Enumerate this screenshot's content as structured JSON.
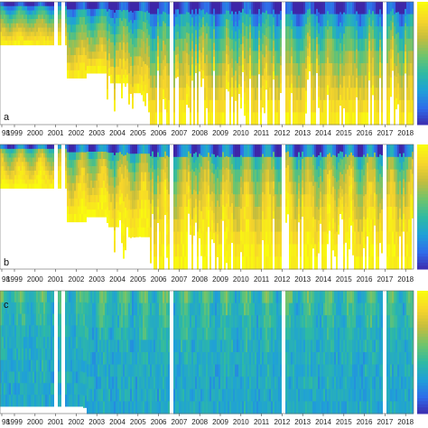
{
  "chart_data": [
    {
      "type": "heatmap",
      "panel_label": "a",
      "x_tick_labels": [
        "98",
        "1999",
        "2000",
        "2001",
        "2002",
        "2003",
        "2004",
        "2005",
        "2006",
        "2007",
        "2008",
        "2009",
        "2010",
        "2011",
        "2012",
        "2013",
        "2014",
        "2015",
        "2016",
        "2017",
        "2018"
      ],
      "colormap": [
        "#3e26a8",
        "#2f6bea",
        "#1fa0d8",
        "#2ebaa3",
        "#6fc46c",
        "#c4bd3e",
        "#f7d52b",
        "#f9fb0e"
      ],
      "coverage_depth_fraction": [
        0.35,
        0.35,
        0.35,
        0.62,
        0.58,
        0.66,
        0.74,
        1.0,
        1.0,
        1.0,
        1.0,
        1.0,
        1.0,
        1.0,
        1.0,
        1.0,
        1.0,
        1.0,
        1.0,
        1.0
      ],
      "data_gaps_year": [
        2000.95,
        2001.35,
        2006.6,
        2012.05,
        2016.95
      ]
    },
    {
      "type": "heatmap",
      "panel_label": "b",
      "x_tick_labels": [
        "98",
        "1999",
        "2000",
        "2001",
        "2002",
        "2003",
        "2004",
        "2005",
        "2006",
        "2007",
        "2008",
        "2009",
        "2010",
        "2011",
        "2012",
        "2013",
        "2014",
        "2015",
        "2016",
        "2017",
        "2018"
      ],
      "colormap": [
        "#3e26a8",
        "#2f6bea",
        "#1fa0d8",
        "#2ebaa3",
        "#6fc46c",
        "#c4bd3e",
        "#f7d52b",
        "#f9fb0e"
      ],
      "coverage_depth_fraction": [
        0.35,
        0.35,
        0.35,
        0.62,
        0.58,
        0.66,
        0.74,
        1.0,
        1.0,
        1.0,
        1.0,
        1.0,
        1.0,
        1.0,
        1.0,
        1.0,
        1.0,
        1.0,
        1.0,
        1.0
      ],
      "data_gaps_year": [
        2000.95,
        2001.35,
        2006.6,
        2012.05,
        2016.95
      ]
    },
    {
      "type": "heatmap",
      "panel_label": "c",
      "x_tick_labels": [
        "98",
        "1999",
        "2000",
        "2001",
        "2002",
        "2003",
        "2004",
        "2005",
        "2006",
        "2007",
        "2008",
        "2009",
        "2010",
        "2011",
        "2012",
        "2013",
        "2014",
        "2015",
        "2016",
        "2017",
        "2018"
      ],
      "colormap": [
        "#3e26a8",
        "#2f6bea",
        "#1fa0d8",
        "#2ebaa3",
        "#6fc46c",
        "#c4bd3e",
        "#f7d52b",
        "#f9fb0e"
      ],
      "coverage_depth_fraction": [
        0.95,
        0.95,
        0.95,
        0.95,
        1.0,
        1.0,
        1.0,
        1.0,
        1.0,
        1.0,
        1.0,
        1.0,
        1.0,
        1.0,
        1.0,
        1.0,
        1.0,
        1.0,
        1.0,
        1.0
      ],
      "data_gaps_year": [
        2000.95,
        2001.35,
        2006.6,
        2012.05,
        2016.95
      ]
    }
  ]
}
